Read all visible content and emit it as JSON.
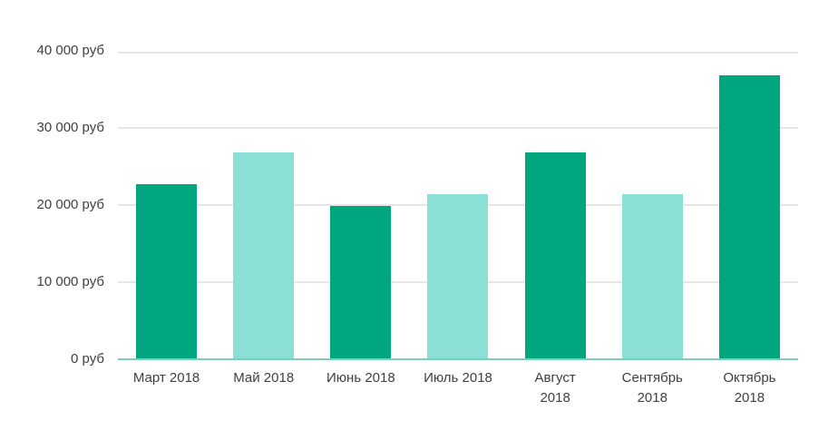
{
  "chart": {
    "background": "#ffffff",
    "colors": {
      "bar_primary": "#00a77e",
      "bar_secondary": "#8be0d5",
      "gridline": "#e6e6e6",
      "axis_line": "#7fccbf",
      "text": "#404040"
    }
  },
  "chart_data": {
    "type": "bar",
    "title": "",
    "xlabel": "",
    "ylabel": "",
    "legend": "none",
    "grid": true,
    "ylim": [
      0,
      40000
    ],
    "categories": [
      "Март 2018",
      "Май 2018",
      "Июнь 2018",
      "Июль 2018",
      "Август 2018",
      "Сентябрь 2018",
      "Октябрь 2018"
    ],
    "values": [
      22800,
      27000,
      20000,
      21500,
      27000,
      21500,
      37000
    ],
    "bar_colors": [
      "#00a77e",
      "#8be0d5",
      "#00a77e",
      "#8be0d5",
      "#00a77e",
      "#8be0d5",
      "#00a77e"
    ],
    "y_ticks": [
      {
        "label": "0 руб",
        "value": 0
      },
      {
        "label": "10 000 руб",
        "value": 10000
      },
      {
        "label": "20 000 руб",
        "value": 20000
      },
      {
        "label": "30 000 руб",
        "value": 30000
      },
      {
        "label": "40 000 руб",
        "value": 40000
      }
    ],
    "x_tick_lines": [
      [
        "Март 2018"
      ],
      [
        "Май 2018"
      ],
      [
        "Июнь 2018"
      ],
      [
        "Июль 2018"
      ],
      [
        "Август",
        "2018"
      ],
      [
        "Сентябрь",
        "2018"
      ],
      [
        "Октябрь",
        "2018"
      ]
    ]
  }
}
